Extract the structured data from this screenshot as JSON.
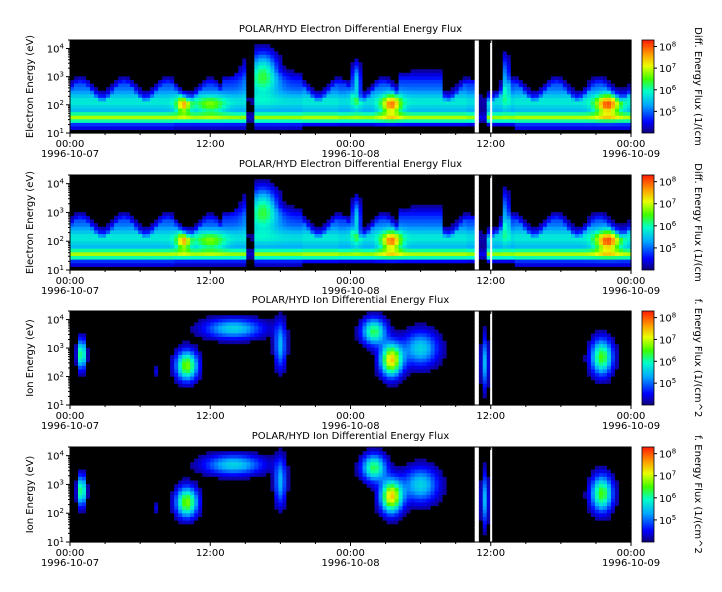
{
  "figure_title": "",
  "chart_data": [
    {
      "type": "heatmap",
      "title": "POLAR/HYD  Electron Differential Energy Flux",
      "ylabel": "Electron Energy (eV)",
      "colorbar_label": "Diff. Energy Flux (1/(cm",
      "species": "electron",
      "x_ticks": [
        "00:00",
        "12:00",
        "00:00",
        "12:00",
        "00:00"
      ],
      "x_date_labels": [
        "1996-10-07",
        "1996-10-08",
        "1996-10-09"
      ],
      "xlim_hours": [
        0,
        48
      ],
      "y_scale": "log",
      "ylim": [
        10,
        20000
      ],
      "y_tick_labels": [
        "10^1",
        "10^2",
        "10^3",
        "10^4"
      ],
      "colorbar_scale": "log",
      "colorbar_range": [
        10000,
        200000000
      ],
      "colorbar_tick_labels": [
        "10^5",
        "10^6",
        "10^7",
        "10^8"
      ],
      "data_gaps_hours": [
        [
          34.8,
          34.95
        ],
        [
          35.95,
          36.1
        ]
      ]
    },
    {
      "type": "heatmap",
      "title": "POLAR/HYD  Electron Differential Energy Flux",
      "ylabel": "Electron Energy (eV)",
      "colorbar_label": "Diff. Energy Flux (1/(cm",
      "species": "electron",
      "x_ticks": [
        "00:00",
        "12:00",
        "00:00",
        "12:00",
        "00:00"
      ],
      "x_date_labels": [
        "1996-10-07",
        "1996-10-08",
        "1996-10-09"
      ],
      "xlim_hours": [
        0,
        48
      ],
      "y_scale": "log",
      "ylim": [
        10,
        20000
      ],
      "y_tick_labels": [
        "10^1",
        "10^2",
        "10^3",
        "10^4"
      ],
      "colorbar_scale": "log",
      "colorbar_range": [
        10000,
        200000000
      ],
      "colorbar_tick_labels": [
        "10^5",
        "10^6",
        "10^7",
        "10^8"
      ],
      "data_gaps_hours": [
        [
          34.8,
          34.95
        ],
        [
          35.95,
          36.1
        ]
      ]
    },
    {
      "type": "heatmap",
      "title": "POLAR/HYD  Ion Differential Energy Flux",
      "ylabel": "Ion Energy (eV)",
      "colorbar_label": "f. Energy Flux (1/(cm^2",
      "species": "ion",
      "x_ticks": [
        "00:00",
        "12:00",
        "00:00",
        "12:00",
        "00:00"
      ],
      "x_date_labels": [
        "1996-10-07",
        "1996-10-08",
        "1996-10-09"
      ],
      "xlim_hours": [
        0,
        48
      ],
      "y_scale": "log",
      "ylim": [
        10,
        20000
      ],
      "y_tick_labels": [
        "10^1",
        "10^2",
        "10^3",
        "10^4"
      ],
      "colorbar_scale": "log",
      "colorbar_range": [
        10000,
        200000000
      ],
      "colorbar_tick_labels": [
        "10^5",
        "10^6",
        "10^7",
        "10^8"
      ],
      "data_gaps_hours": [
        [
          34.8,
          34.95
        ],
        [
          35.95,
          36.1
        ]
      ]
    },
    {
      "type": "heatmap",
      "title": "POLAR/HYD  Ion Differential Energy Flux",
      "ylabel": "Ion Energy (eV)",
      "colorbar_label": "f. Energy Flux (1/(cm^2",
      "species": "ion",
      "x_ticks": [
        "00:00",
        "12:00",
        "00:00",
        "12:00",
        "00:00"
      ],
      "x_date_labels": [
        "1996-10-07",
        "1996-10-08",
        "1996-10-09"
      ],
      "xlim_hours": [
        0,
        48
      ],
      "y_scale": "log",
      "ylim": [
        10,
        20000
      ],
      "y_tick_labels": [
        "10^1",
        "10^2",
        "10^3",
        "10^4"
      ],
      "colorbar_scale": "log",
      "colorbar_range": [
        10000,
        200000000
      ],
      "colorbar_tick_labels": [
        "10^5",
        "10^6",
        "10^7",
        "10^8"
      ],
      "data_gaps_hours": [
        [
          34.8,
          34.95
        ],
        [
          35.95,
          36.1
        ]
      ]
    }
  ]
}
